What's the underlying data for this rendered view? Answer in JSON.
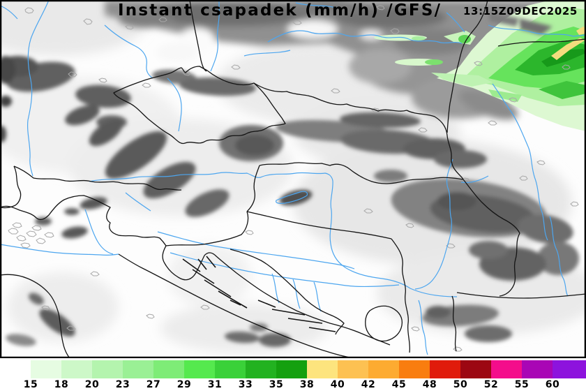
{
  "header": {
    "title": "Instant csapadek (mm/h) /GFS/",
    "timestamp": "13:15Z09DEC2025"
  },
  "legend": {
    "unit": "mm/h",
    "tick_labels": [
      "15",
      "18",
      "20",
      "23",
      "27",
      "29",
      "31",
      "33",
      "35",
      "38",
      "40",
      "42",
      "45",
      "48",
      "50",
      "52",
      "55",
      "60"
    ],
    "segment_colors": [
      "#ffffff",
      "#e6fce2",
      "#cdf8c8",
      "#b4f4ae",
      "#9af095",
      "#7eec77",
      "#55e94e",
      "#3ad139",
      "#22b220",
      "#14a00f",
      "#fde47e",
      "#fdc152",
      "#fdab31",
      "#f97d0f",
      "#e01b0b",
      "#9c0712",
      "#f40d8b",
      "#a906b5",
      "#8d13dd"
    ]
  },
  "map": {
    "frame_color": "#000000",
    "border_color": "#141414",
    "river_color": "#4da6ef",
    "cloud_dark_color": "#5c5c5c",
    "cloud_light_color": "#e9e9e9",
    "precip_light_color": "#ddf8d2",
    "precip_core_color": "#2cb62c",
    "precip_intense_color": "#f3dc7e"
  }
}
